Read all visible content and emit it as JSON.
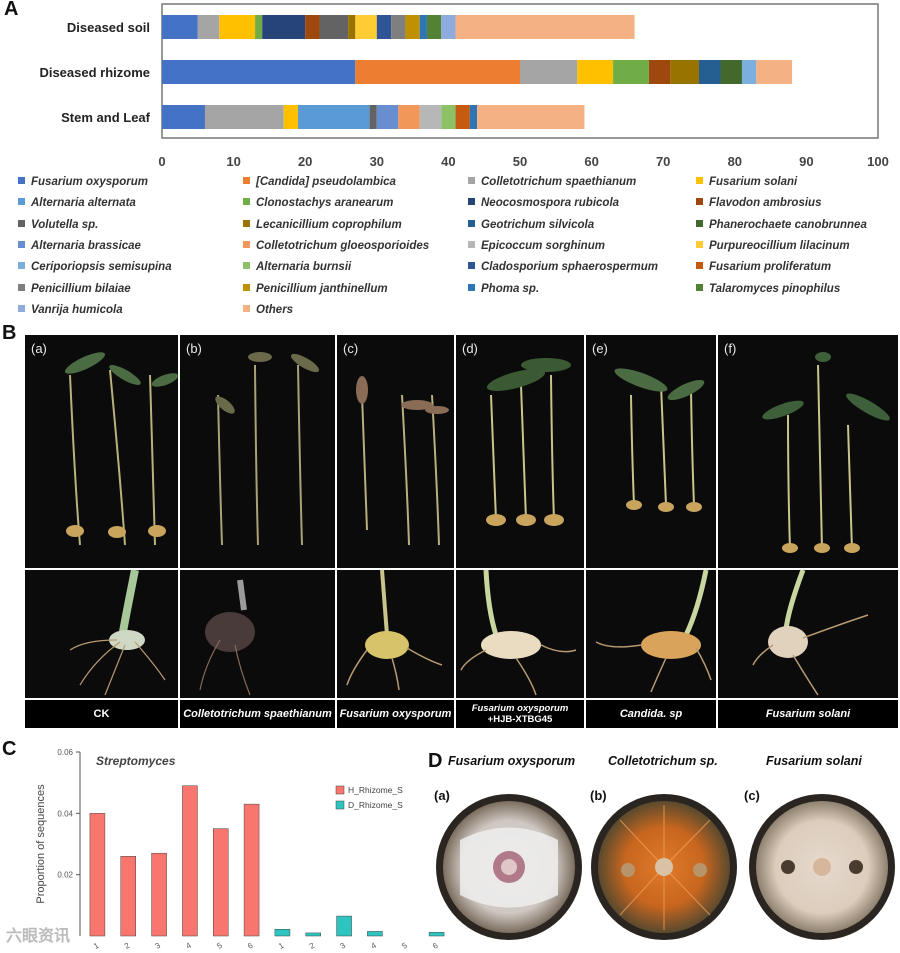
{
  "panel_labels": {
    "a": "A",
    "b": "B",
    "c": "C",
    "d": "D"
  },
  "chart_data": [
    {
      "type": "bar",
      "orientation": "horizontal",
      "stacked": true,
      "categories": [
        "Diseased soil",
        "Diseased rhizome",
        "Stem and Leaf"
      ],
      "xlim": [
        0,
        100
      ],
      "xticks": [
        0,
        10,
        20,
        30,
        40,
        50,
        60,
        70,
        80,
        90,
        100
      ],
      "series": [
        {
          "name": "Fusarium oxysporum",
          "color": "#4472C4",
          "values": [
            5,
            27,
            6
          ]
        },
        {
          "name": "[Candida] pseudolambica",
          "color": "#ED7D31",
          "values": [
            0,
            23,
            0
          ]
        },
        {
          "name": "Colletotrichum spaethianum",
          "color": "#A5A5A5",
          "values": [
            3,
            8,
            11
          ]
        },
        {
          "name": "Fusarium solani",
          "color": "#FFC000",
          "values": [
            5,
            5,
            2
          ]
        },
        {
          "name": "Alternaria alternata",
          "color": "#5B9BD5",
          "values": [
            0,
            0,
            10
          ]
        },
        {
          "name": "Clonostachys aranearum",
          "color": "#70AD47",
          "values": [
            1,
            5,
            0
          ]
        },
        {
          "name": "Neocosmospora rubicola",
          "color": "#264478",
          "values": [
            6,
            0,
            0
          ]
        },
        {
          "name": "Flavodon ambrosius",
          "color": "#9E480E",
          "values": [
            2,
            3,
            0
          ]
        },
        {
          "name": "Volutella sp.",
          "color": "#636363",
          "values": [
            4,
            0,
            1
          ]
        },
        {
          "name": "Lecanicillium coprophilum",
          "color": "#997300",
          "values": [
            1,
            4,
            0
          ]
        },
        {
          "name": "Geotrichum silvicola",
          "color": "#255E91",
          "values": [
            0,
            3,
            0
          ]
        },
        {
          "name": "Phanerochaete canobrunnea",
          "color": "#43682B",
          "values": [
            0,
            3,
            0
          ]
        },
        {
          "name": "Alternaria brassicae",
          "color": "#698ED0",
          "values": [
            0,
            0,
            3
          ]
        },
        {
          "name": "Colletotrichum gloeosporioides",
          "color": "#F1975A",
          "values": [
            0,
            0,
            3
          ]
        },
        {
          "name": "Epicoccum sorghinum",
          "color": "#B7B7B7",
          "values": [
            0,
            0,
            3
          ]
        },
        {
          "name": "Purpureocillium lilacinum",
          "color": "#FFCD33",
          "values": [
            3,
            0,
            0
          ]
        },
        {
          "name": "Ceriporiopsis semisupina",
          "color": "#7CAFDD",
          "values": [
            0,
            2,
            0
          ]
        },
        {
          "name": "Alternaria burnsii",
          "color": "#8CC168",
          "values": [
            0,
            0,
            2
          ]
        },
        {
          "name": "Cladosporium sphaerospermum",
          "color": "#2F5597",
          "values": [
            2,
            0,
            0
          ]
        },
        {
          "name": "Fusarium proliferatum",
          "color": "#C55A11",
          "values": [
            0,
            0,
            2
          ]
        },
        {
          "name": "Penicillium bilaiae",
          "color": "#7F7F7F",
          "values": [
            2,
            0,
            0
          ]
        },
        {
          "name": "Penicillium janthinellum",
          "color": "#BF9000",
          "values": [
            2,
            0,
            0
          ]
        },
        {
          "name": "Phoma sp.",
          "color": "#2E75B6",
          "values": [
            1,
            0,
            1
          ]
        },
        {
          "name": "Talaromyces pinophilus",
          "color": "#548235",
          "values": [
            2,
            0,
            0
          ]
        },
        {
          "name": "Vanrija humicola",
          "color": "#8FAADC",
          "values": [
            2,
            0,
            0
          ]
        },
        {
          "name": "Others",
          "color": "#F4B183",
          "values": [
            25,
            5,
            15
          ]
        }
      ]
    },
    {
      "type": "bar",
      "title": "Streptomyces",
      "ylabel": "Proportion of sequences",
      "ylim": [
        0,
        0.06
      ],
      "yticks": [
        0.02,
        0.04,
        0.06
      ],
      "categories": [
        "1",
        "2",
        "3",
        "4",
        "5",
        "6",
        "1",
        "2",
        "3",
        "4",
        "5",
        "6"
      ],
      "series": [
        {
          "name": "H_Rhizome_S",
          "color": "#F8766D",
          "values": [
            0.04,
            0.026,
            0.027,
            0.049,
            0.035,
            0.043,
            0,
            0,
            0,
            0,
            0,
            0
          ]
        },
        {
          "name": "D_Rhizome_S",
          "color": "#2EC4C0",
          "values": [
            0,
            0,
            0,
            0,
            0,
            0,
            0.0022,
            0.001,
            0.0065,
            0.0015,
            0,
            0.0012
          ]
        }
      ]
    }
  ],
  "panel_b": {
    "sublabels": [
      "(a)",
      "(b)",
      "(c)",
      "(d)",
      "(e)",
      "(f)"
    ],
    "captions": [
      "CK",
      "Colletotrichum spaethianum",
      "Fusarium oxysporum",
      "Fusarium oxysporum",
      "+HJB-XTBG45",
      "Candida. sp",
      "Fusarium solani"
    ]
  },
  "panel_d": {
    "titles": [
      "Fusarium oxysporum",
      "Colletotrichum sp.",
      "Fusarium solani"
    ],
    "sublabels": [
      "(a)",
      "(b)",
      "(c)"
    ]
  },
  "watermark": "六眼资讯"
}
